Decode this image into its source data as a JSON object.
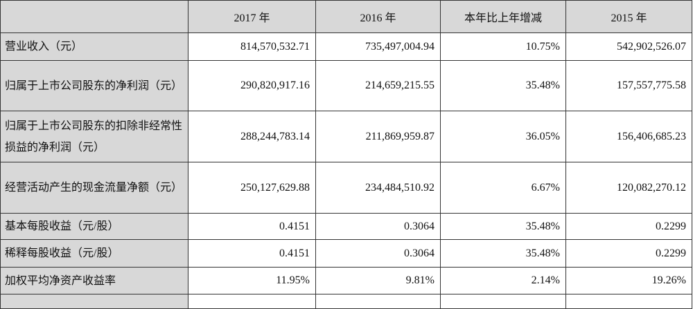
{
  "header": {
    "c0": "",
    "c1": "2017 年",
    "c2": "2016 年",
    "c3": "本年比上年增减",
    "c4": "2015 年"
  },
  "rows": [
    {
      "label": "营业收入（元）",
      "v2017": "814,570,532.71",
      "v2016": "735,497,004.94",
      "change": "10.75%",
      "v2015": "542,902,526.07"
    },
    {
      "label": "归属于上市公司股东的净利润（元）",
      "v2017": "290,820,917.16",
      "v2016": "214,659,215.55",
      "change": "35.48%",
      "v2015": "157,557,775.58"
    },
    {
      "label": "归属于上市公司股东的扣除非经常性损益的净利润（元）",
      "v2017": "288,244,783.14",
      "v2016": "211,869,959.87",
      "change": "36.05%",
      "v2015": "156,406,685.23"
    },
    {
      "label": "经营活动产生的现金流量净额（元）",
      "v2017": "250,127,629.88",
      "v2016": "234,484,510.92",
      "change": "6.67%",
      "v2015": "120,082,270.12"
    },
    {
      "label": "基本每股收益（元/股）",
      "v2017": "0.4151",
      "v2016": "0.3064",
      "change": "35.48%",
      "v2015": "0.2299"
    },
    {
      "label": "稀释每股收益（元/股）",
      "v2017": "0.4151",
      "v2016": "0.3064",
      "change": "35.48%",
      "v2015": "0.2299"
    },
    {
      "label": "加权平均净资产收益率",
      "v2017": "11.95%",
      "v2016": "9.81%",
      "change": "2.14%",
      "v2015": "19.26%"
    }
  ]
}
